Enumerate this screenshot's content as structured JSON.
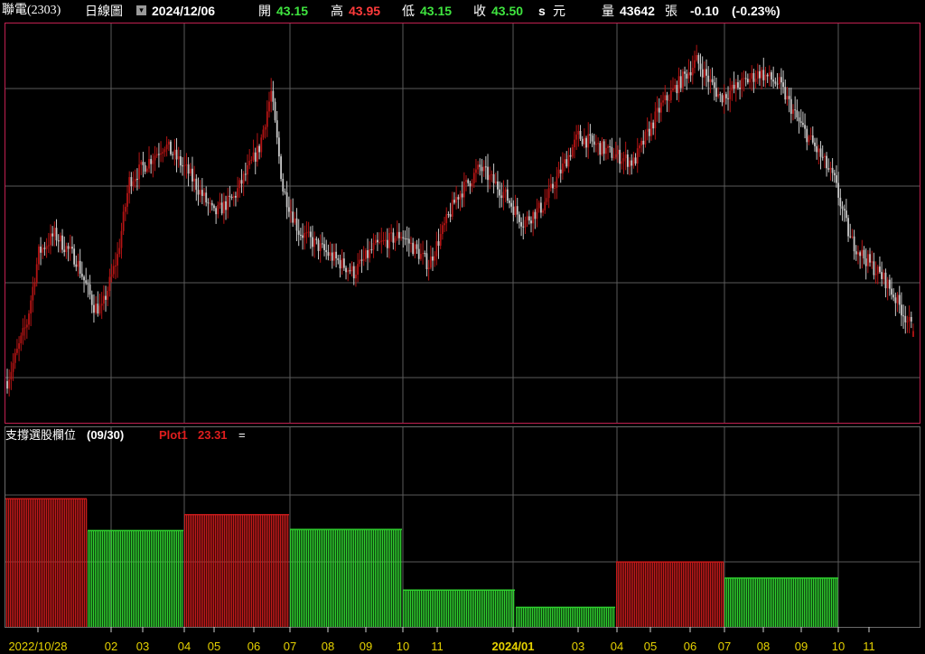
{
  "header": {
    "stock_name": "聯電(2303)",
    "period": "日線圖",
    "date": "2024/12/06",
    "open_label": "開",
    "open": "43.15",
    "high_label": "高",
    "high": "43.95",
    "low_label": "低",
    "low": "43.15",
    "close_label": "收",
    "close": "43.50",
    "close_suffix": "s",
    "unit": "元",
    "volume_label": "量",
    "volume": "43642",
    "volume_unit": "張",
    "change": "-0.10",
    "change_pct": "(-0.23%)"
  },
  "indicator": {
    "name": "支撐選股欄位",
    "date": "(09/30)",
    "plot_label": "Plot1",
    "plot_value": "23.31",
    "suffix": "="
  },
  "colors": {
    "up": "#b31414",
    "down": "#c8c8c8",
    "bar_red": "#c41a1a",
    "bar_green": "#2fd12f",
    "grid": "#5a5a5a",
    "frame": "#c02050",
    "axis_text": "#e6d200"
  },
  "chart_data": [
    {
      "type": "candlestick",
      "title": "聯電(2303) 日線圖",
      "x_tick_labels": [
        "2022/10/28",
        "02",
        "03",
        "04",
        "05",
        "06",
        "07",
        "08",
        "09",
        "10",
        "11",
        "2024/01",
        "03",
        "04",
        "05",
        "06",
        "07",
        "08",
        "09",
        "10",
        "11"
      ],
      "price_path_approx": [
        [
          0,
          40.5
        ],
        [
          10,
          44.0
        ],
        [
          16,
          48.2
        ],
        [
          24,
          49.3
        ],
        [
          35,
          47.8
        ],
        [
          44,
          45.0
        ],
        [
          48,
          44.8
        ],
        [
          56,
          48.0
        ],
        [
          62,
          52.5
        ],
        [
          80,
          54.7
        ],
        [
          92,
          53.0
        ],
        [
          105,
          50.5
        ],
        [
          115,
          51.5
        ],
        [
          128,
          54.5
        ],
        [
          134,
          57.8
        ],
        [
          140,
          52.0
        ],
        [
          148,
          49.5
        ],
        [
          162,
          48.2
        ],
        [
          176,
          47.0
        ],
        [
          186,
          48.5
        ],
        [
          200,
          49.3
        ],
        [
          214,
          47.5
        ],
        [
          228,
          51.5
        ],
        [
          240,
          53.3
        ],
        [
          252,
          51.8
        ],
        [
          262,
          50.0
        ],
        [
          272,
          51.0
        ],
        [
          290,
          55.2
        ],
        [
          306,
          54.2
        ],
        [
          318,
          53.6
        ],
        [
          332,
          57.0
        ],
        [
          350,
          59.7
        ],
        [
          362,
          57.5
        ],
        [
          382,
          59.0
        ],
        [
          392,
          58.3
        ],
        [
          402,
          56.0
        ],
        [
          414,
          53.8
        ],
        [
          420,
          52.5
        ],
        [
          428,
          49.0
        ],
        [
          436,
          47.8
        ],
        [
          446,
          46.5
        ],
        [
          455,
          44.6
        ],
        [
          460,
          43.5
        ]
      ],
      "last": {
        "date": "2024/12/06",
        "open": 43.15,
        "high": 43.95,
        "low": 43.15,
        "close": 43.5
      }
    },
    {
      "type": "bar",
      "title": "支撐選股欄位",
      "segments": [
        {
          "from_tick": "2022/10/28",
          "to_tick": "02",
          "value": 46.0,
          "color": "red"
        },
        {
          "from_tick": "02",
          "to_tick": "04",
          "value": 34.6,
          "color": "green"
        },
        {
          "from_tick": "04",
          "to_tick": "07",
          "value": 40.3,
          "color": "red"
        },
        {
          "from_tick": "07",
          "to_tick": "10",
          "value": 35.0,
          "color": "green"
        },
        {
          "from_tick": "10",
          "to_tick": "2024/01",
          "value": 13.2,
          "color": "green"
        },
        {
          "from_tick": "2024/01",
          "to_tick": "04",
          "value": 7.0,
          "color": "green"
        },
        {
          "from_tick": "04",
          "to_tick": "07",
          "value": 23.31,
          "color": "red"
        },
        {
          "from_tick": "07",
          "to_tick": "10",
          "value": 17.5,
          "color": "green"
        }
      ],
      "ylim": [
        0,
        72
      ]
    }
  ]
}
